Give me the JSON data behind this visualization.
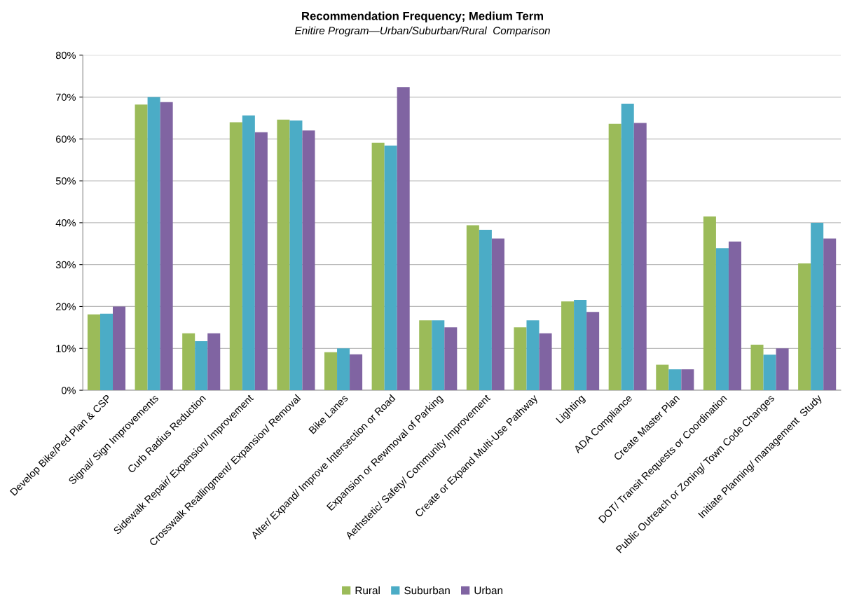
{
  "chart_data": {
    "type": "bar",
    "title": "Recommendation Frequency; Medium Term",
    "subtitle": "Enitire Program—Urban/Suburban/Rural  Comparison",
    "categories": [
      "Develop Bike/Ped Plan & CSP",
      "Signal/ Sign Improvements",
      "Curb Radius Reduction",
      "Sidewalk Repair/ Expansion/ Improvement",
      "Crosswalk Reallingment/ Expansion/ Removal",
      "Bike Lanes",
      "Alter/ Expand/ Improve Intersection or Road",
      "Expansion or Rewmoval of Parking",
      "Aethstetic/ Safety/ Community Improvement",
      "Create or Expand Multi-Use Pathway",
      "Lighting",
      "ADA Compliance",
      "Create Master Plan",
      "DOT/ Transit Requests or Coordination",
      "Public Outreach or Zoning/ Town Code Changes",
      "Initiate Planning/ management  Study"
    ],
    "series": [
      {
        "name": "Rural",
        "color": "#9bbb59",
        "values": [
          18.1,
          68.2,
          13.6,
          64.0,
          64.6,
          9.1,
          59.1,
          16.7,
          39.4,
          15.0,
          21.2,
          63.6,
          6.1,
          41.5,
          10.9,
          30.3
        ]
      },
      {
        "name": "Suburban",
        "color": "#4bacc6",
        "values": [
          18.3,
          70.0,
          11.7,
          65.6,
          64.4,
          10.0,
          58.4,
          16.7,
          38.3,
          16.7,
          21.6,
          68.4,
          5.0,
          33.9,
          8.5,
          40.0
        ]
      },
      {
        "name": "Urban",
        "color": "#8064a2",
        "values": [
          20.0,
          68.8,
          13.6,
          61.6,
          62.0,
          8.6,
          72.4,
          15.0,
          36.2,
          13.6,
          18.7,
          63.8,
          5.0,
          35.5,
          10.0,
          36.2
        ]
      }
    ],
    "ylim": [
      0,
      80
    ],
    "yticks": [
      {
        "value": 0,
        "label": "0%"
      },
      {
        "value": 10,
        "label": "10%"
      },
      {
        "value": 20,
        "label": "20%"
      },
      {
        "value": 30,
        "label": "30%"
      },
      {
        "value": 40,
        "label": "40%"
      },
      {
        "value": 50,
        "label": "50%"
      },
      {
        "value": 60,
        "label": "60%"
      },
      {
        "value": 70,
        "label": "70%"
      },
      {
        "value": 80,
        "label": "80%"
      }
    ],
    "grid": "y",
    "legend": "bottom"
  }
}
